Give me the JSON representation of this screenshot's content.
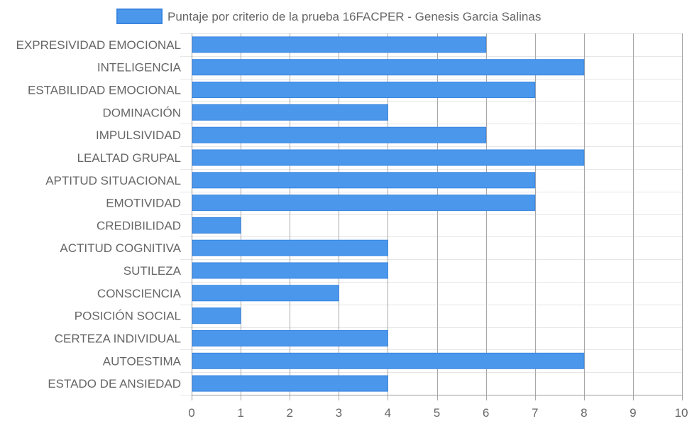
{
  "chart_data": {
    "type": "bar",
    "orientation": "horizontal",
    "legend": {
      "label": "Puntaje por criterio de la prueba 16FACPER - Genesis Garcia Salinas",
      "placement": "top-center"
    },
    "categories": [
      "EXPRESIVIDAD EMOCIONAL",
      "INTELIGENCIA",
      "ESTABILIDAD EMOCIONAL",
      "DOMINACIÓN",
      "IMPULSIVIDAD",
      "LEALTAD GRUPAL",
      "APTITUD SITUACIONAL",
      "EMOTIVIDAD",
      "CREDIBILIDAD",
      "ACTITUD COGNITIVA",
      "SUTILEZA",
      "CONSCIENCIA",
      "POSICIÓN SOCIAL",
      "CERTEZA INDIVIDUAL",
      "AUTOESTIMA",
      "ESTADO DE ANSIEDAD"
    ],
    "series": [
      {
        "name": "Puntaje por criterio de la prueba 16FACPER - Genesis Garcia Salinas",
        "values": [
          6,
          8,
          7,
          4,
          6,
          8,
          7,
          7,
          1,
          4,
          4,
          3,
          1,
          4,
          8,
          4
        ]
      }
    ],
    "xlim": [
      0,
      10
    ],
    "xticks": [
      "0",
      "1",
      "2",
      "3",
      "4",
      "5",
      "6",
      "7",
      "8",
      "9",
      "10"
    ],
    "grid": true,
    "colors": {
      "bar_fill": "#4a97ec",
      "bar_border": "#3a86e0",
      "grid_vertical": "#a8a8a8",
      "grid_horizontal": "#e6e6e6",
      "axis": "#999999"
    }
  }
}
